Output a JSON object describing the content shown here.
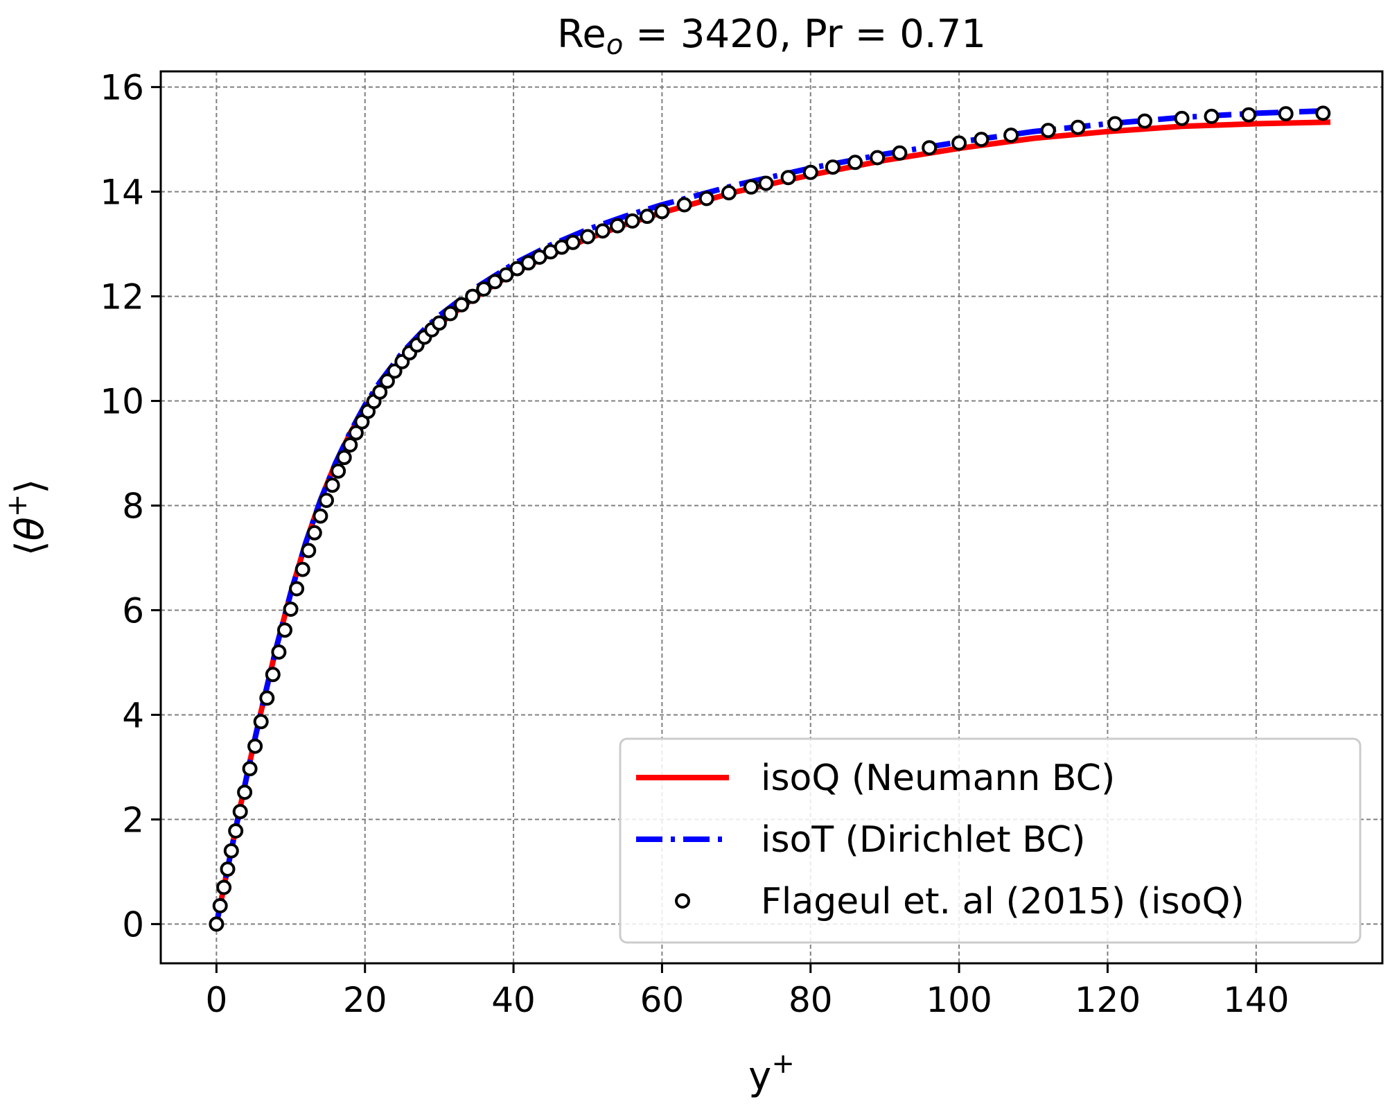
{
  "chart_data": {
    "type": "line",
    "title": {
      "prefix": "Re",
      "subscript": "o",
      "rest": " = 3420, Pr = 0.71"
    },
    "xlabel": {
      "base": "y",
      "sup": "+"
    },
    "ylabel": {
      "open": "⟨",
      "symbol": "θ",
      "sup": "+",
      "close": "⟩"
    },
    "xlim": [
      -7.5,
      157
    ],
    "ylim": [
      -0.75,
      16.3
    ],
    "xticks": [
      0,
      20,
      40,
      60,
      80,
      100,
      120,
      140
    ],
    "yticks": [
      0,
      2,
      4,
      6,
      8,
      10,
      12,
      14,
      16
    ],
    "grid": true,
    "legend_position": "lower-right",
    "series": [
      {
        "name": "isoQ (Neumann BC)",
        "style": "solid",
        "color": "#ff0000",
        "x": [
          0,
          1,
          2,
          3,
          4,
          5,
          6,
          8,
          10,
          12,
          14,
          16,
          18,
          20,
          22,
          25,
          28,
          30,
          35,
          40,
          45,
          50,
          55,
          60,
          70,
          80,
          90,
          100,
          110,
          120,
          130,
          140,
          150
        ],
        "y": [
          0,
          0.71,
          1.41,
          2.1,
          2.77,
          3.43,
          4.06,
          5.25,
          6.33,
          7.28,
          8.1,
          8.8,
          9.38,
          9.87,
          10.28,
          10.8,
          11.22,
          11.47,
          12.0,
          12.45,
          12.8,
          13.1,
          13.37,
          13.6,
          14.0,
          14.32,
          14.6,
          14.83,
          15.02,
          15.15,
          15.25,
          15.3,
          15.33
        ]
      },
      {
        "name": "isoT (Dirichlet BC)",
        "style": "dashdot",
        "color": "#0000ff",
        "x": [
          0,
          1,
          2,
          3,
          4,
          5,
          6,
          8,
          10,
          12,
          14,
          16,
          18,
          20,
          22,
          25,
          28,
          30,
          35,
          40,
          45,
          50,
          55,
          60,
          70,
          80,
          90,
          100,
          110,
          120,
          130,
          140,
          150
        ],
        "y": [
          0,
          0.71,
          1.41,
          2.1,
          2.77,
          3.43,
          4.06,
          5.25,
          6.33,
          7.28,
          8.1,
          8.8,
          9.4,
          9.92,
          10.36,
          10.92,
          11.37,
          11.63,
          12.17,
          12.62,
          12.98,
          13.28,
          13.53,
          13.75,
          14.13,
          14.45,
          14.72,
          14.95,
          15.15,
          15.3,
          15.42,
          15.5,
          15.55
        ]
      },
      {
        "name": "Flageul et. al (2015) (isoQ)",
        "style": "markers",
        "color": "#000000",
        "x": [
          0,
          0.5,
          1,
          1.5,
          2,
          2.6,
          3.2,
          3.8,
          4.5,
          5.2,
          6,
          6.8,
          7.6,
          8.4,
          9.2,
          10,
          10.8,
          11.6,
          12.4,
          13.2,
          14,
          14.8,
          15.6,
          16.4,
          17.2,
          18,
          18.8,
          19.6,
          20.4,
          21.2,
          22,
          23,
          24,
          25,
          26,
          27,
          28,
          29,
          30,
          31.5,
          33,
          34.5,
          36,
          37.5,
          39,
          40.5,
          42,
          43.5,
          45,
          46.5,
          48,
          50,
          52,
          54,
          56,
          58,
          60,
          63,
          66,
          69,
          72,
          74,
          77,
          80,
          83,
          86,
          89,
          92,
          96,
          100,
          103,
          107,
          112,
          116,
          121,
          125,
          130,
          134,
          139,
          144,
          149
        ],
        "y": [
          0,
          0.35,
          0.7,
          1.05,
          1.4,
          1.78,
          2.15,
          2.52,
          2.97,
          3.4,
          3.87,
          4.32,
          4.77,
          5.2,
          5.62,
          6.02,
          6.41,
          6.78,
          7.14,
          7.48,
          7.8,
          8.1,
          8.39,
          8.66,
          8.92,
          9.16,
          9.39,
          9.6,
          9.8,
          9.99,
          10.17,
          10.38,
          10.57,
          10.75,
          10.92,
          11.07,
          11.22,
          11.36,
          11.49,
          11.67,
          11.84,
          12.0,
          12.14,
          12.28,
          12.41,
          12.53,
          12.64,
          12.75,
          12.85,
          12.94,
          13.03,
          13.14,
          13.25,
          13.35,
          13.44,
          13.53,
          13.62,
          13.75,
          13.87,
          13.98,
          14.09,
          14.16,
          14.27,
          14.37,
          14.47,
          14.56,
          14.65,
          14.74,
          14.84,
          14.93,
          15.0,
          15.08,
          15.17,
          15.23,
          15.3,
          15.35,
          15.4,
          15.44,
          15.47,
          15.49,
          15.5
        ]
      }
    ]
  }
}
